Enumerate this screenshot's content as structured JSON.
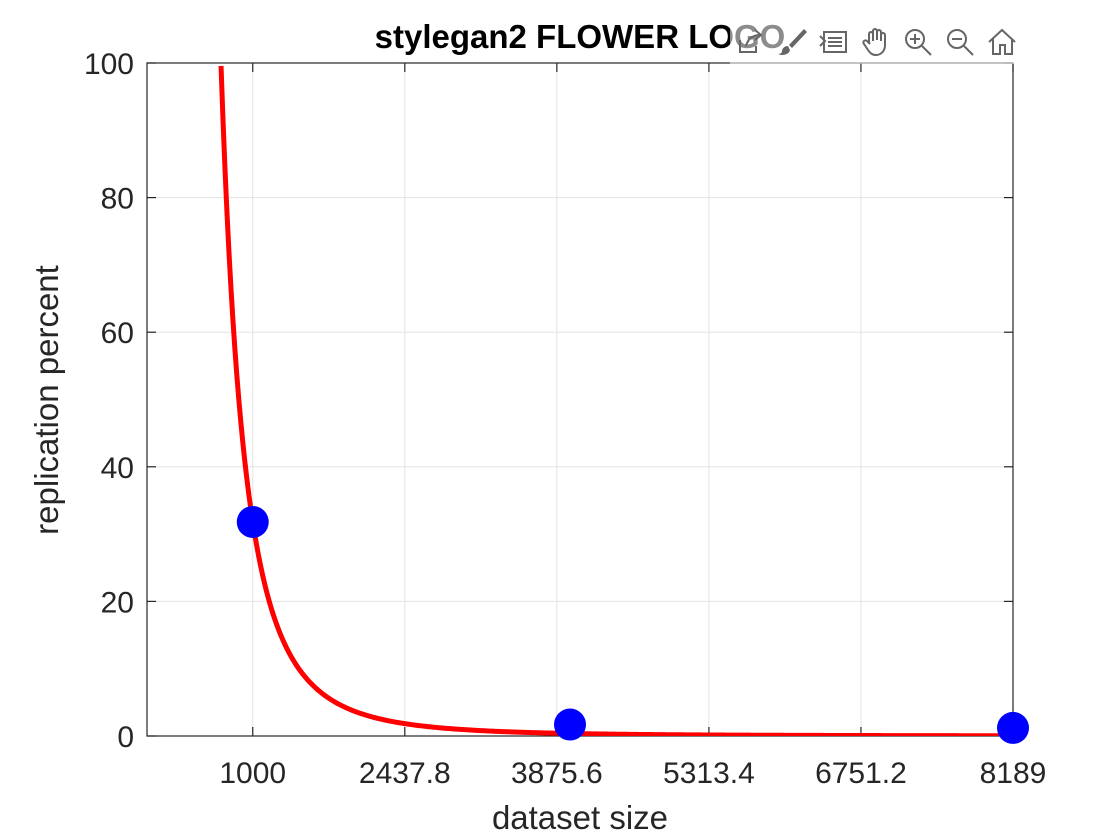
{
  "chart_data": {
    "type": "line",
    "title": "stylegan2 FLOWER LOGO",
    "xlabel": "dataset size",
    "ylabel": "replication percent",
    "xlim": [
      0,
      8189
    ],
    "ylim": [
      0,
      100
    ],
    "xticks": [
      1000,
      2437.8,
      3875.6,
      5313.4,
      6751.2,
      8189
    ],
    "xtick_labels": [
      "1000",
      "2437.8",
      "3875.6",
      "5313.4",
      "6751.2",
      "8189"
    ],
    "yticks": [
      0,
      20,
      40,
      60,
      80,
      100
    ],
    "ytick_labels": [
      "0",
      "20",
      "40",
      "60",
      "80",
      "100"
    ],
    "grid": true,
    "series": [
      {
        "kind": "points",
        "color": "#0000ff",
        "x": [
          1000,
          4000,
          8189
        ],
        "y": [
          31.8,
          1.7,
          1.2
        ]
      },
      {
        "kind": "fit-curve",
        "color": "#ff0000",
        "model": "power",
        "a": 31.8,
        "b": -3.2,
        "x_start": 700,
        "x_end": 8189
      }
    ]
  },
  "toolbar": {
    "icons": [
      "export-icon",
      "brush-icon",
      "legend-icon",
      "pan-hand-icon",
      "zoom-in-icon",
      "zoom-out-icon",
      "home-icon"
    ]
  }
}
